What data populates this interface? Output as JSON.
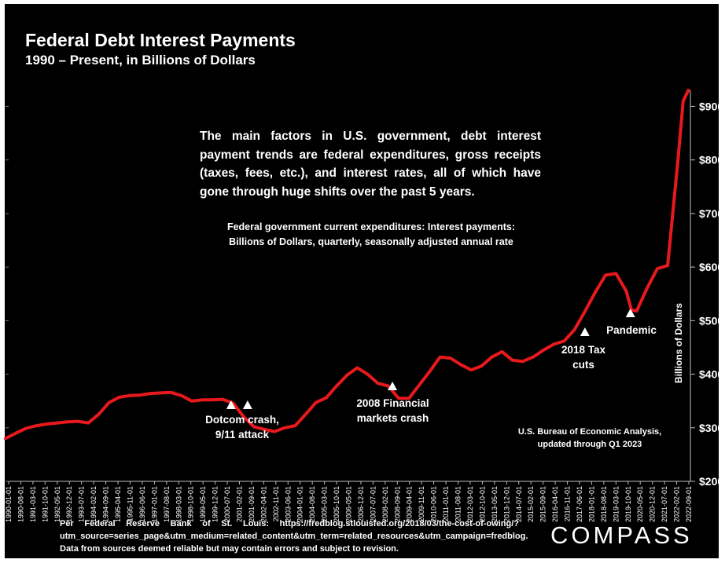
{
  "chart_data": {
    "type": "line",
    "title": "Federal Debt Interest Payments",
    "subtitle": "1990 – Present, in Billions of Dollars",
    "ylabel": "Billions of Dollars",
    "xlabel": "",
    "ylim": [
      200,
      930
    ],
    "yticks": [
      "$200",
      "$300",
      "$400",
      "$500",
      "$600",
      "$700",
      "$800",
      "$900"
    ],
    "ytick_values": [
      200,
      300,
      400,
      500,
      600,
      700,
      800,
      900
    ],
    "xtick_labels": [
      "1990-01-01",
      "1990-08-01",
      "1991-03-01",
      "1991-10-01",
      "1992-05-01",
      "1992-12-01",
      "1993-07-01",
      "1994-02-01",
      "1994-09-01",
      "1995-04-01",
      "1995-11-01",
      "1996-06-01",
      "1997-01-01",
      "1997-08-01",
      "1998-03-01",
      "1998-10-01",
      "1999-05-01",
      "1999-12-01",
      "2000-07-01",
      "2001-02-01",
      "2001-09-01",
      "2002-04-01",
      "2002-11-01",
      "2003-06-01",
      "2004-01-01",
      "2004-08-01",
      "2005-03-01",
      "2005-10-01",
      "2006-05-01",
      "2006-12-01",
      "2007-07-01",
      "2008-02-01",
      "2008-09-01",
      "2009-04-01",
      "2009-11-01",
      "2010-06-01",
      "2011-01-01",
      "2011-08-01",
      "2012-03-01",
      "2012-10-01",
      "2013-05-01",
      "2013-12-01",
      "2014-07-01",
      "2015-02-01",
      "2015-09-01",
      "2016-04-01",
      "2016-11-01",
      "2017-06-01",
      "2018-01-01",
      "2018-08-01",
      "2019-03-01",
      "2019-10-01",
      "2020-05-01",
      "2020-12-01",
      "2021-07-01",
      "2022-02-01",
      "2022-09-01"
    ],
    "series": [
      {
        "color": "#e8191c",
        "x": [
          1990.0,
          1990.5,
          1991.0,
          1991.5,
          1992.0,
          1992.5,
          1993.0,
          1993.5,
          1994.0,
          1994.5,
          1995.0,
          1995.5,
          1996.0,
          1996.5,
          1997.0,
          1997.5,
          1998.0,
          1998.5,
          1999.0,
          1999.5,
          2000.0,
          2000.5,
          2001.0,
          2001.5,
          2002.0,
          2002.5,
          2003.0,
          2003.5,
          2004.0,
          2004.5,
          2005.0,
          2005.5,
          2006.0,
          2006.5,
          2007.0,
          2007.5,
          2008.0,
          2008.5,
          2009.0,
          2009.5,
          2010.0,
          2010.5,
          2011.0,
          2011.5,
          2012.0,
          2012.5,
          2013.0,
          2013.5,
          2014.0,
          2014.5,
          2015.0,
          2015.5,
          2016.0,
          2016.5,
          2017.0,
          2017.5,
          2018.0,
          2018.5,
          2019.0,
          2019.5,
          2020.0,
          2020.25,
          2020.5,
          2021.0,
          2021.5,
          2022.0,
          2022.5,
          2022.75,
          2023.0
        ],
        "y": [
          280,
          290,
          299,
          304,
          307,
          309,
          311,
          312,
          309,
          325,
          347,
          357,
          360,
          361,
          364,
          365,
          366,
          360,
          350,
          352,
          352,
          353,
          346,
          321,
          302,
          297,
          293,
          300,
          304,
          325,
          347,
          356,
          378,
          398,
          412,
          400,
          383,
          378,
          355,
          355,
          380,
          405,
          432,
          430,
          418,
          408,
          415,
          432,
          442,
          426,
          424,
          432,
          445,
          456,
          462,
          483,
          517,
          553,
          585,
          588,
          555,
          520,
          518,
          560,
          597,
          603,
          800,
          910,
          930
        ]
      }
    ],
    "annotations": [
      {
        "text": "Dotcom crash, 9/11 attack",
        "markers_x": [
          2000.9,
          2001.7
        ]
      },
      {
        "text": "2008 Financial markets crash",
        "markers_x": [
          2008.7
        ]
      },
      {
        "text": "2018 Tax cuts",
        "markers_x": [
          2018.0
        ]
      },
      {
        "text": "Pandemic",
        "markers_x": [
          2020.2
        ]
      }
    ],
    "grid": false
  },
  "texts": {
    "note_main": "The main factors in U.S. government, debt interest payment trends are federal expenditures, gross receipts (taxes, fees, etc.), and interest rates, all of which have gone through huge shifts over the past 5 years.",
    "note_series_1": "Federal government current expenditures: Interest payments:",
    "note_series_2": "Billions of Dollars, quarterly, seasonally adjusted annual rate",
    "source_1": "U.S. Bureau of Economic Analysis,",
    "source_2": "updated through Q1 2023",
    "dotcom_1": "Dotcom crash,",
    "dotcom_2": "9/11 attack",
    "fin_1": "2008 Financial",
    "fin_2": "markets crash",
    "tax_1": "2018 Tax",
    "tax_2": "cuts",
    "pandemic": "Pandemic",
    "footer": "Per Federal Reserve Bank of St. Louis: https://fredblog.stlouisfed.org/2018/03/the-cost-of-owing/?utm_source=series_page&utm_medium=related_content&utm_term=related_resources&utm_campaign=fredblog. Data from sources deemed reliable but may contain errors and subject to revision.",
    "logo": "COMPASS"
  }
}
